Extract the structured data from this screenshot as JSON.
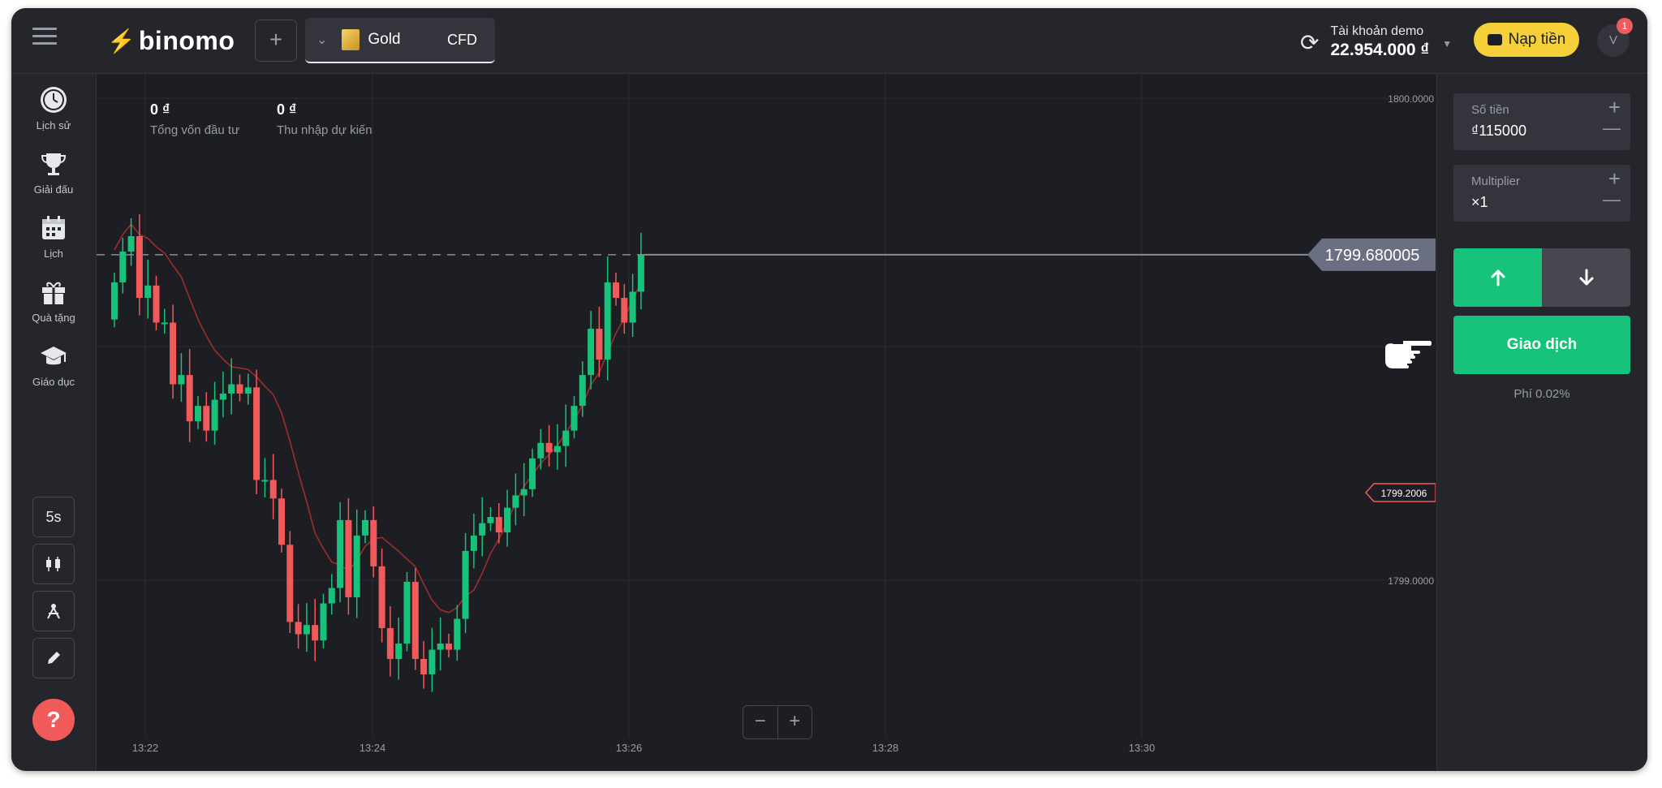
{
  "header": {
    "brand": "binomo",
    "asset": {
      "name": "Gold",
      "type": "CFD"
    },
    "account": {
      "label": "Tài khoản demo",
      "balance": "22.954.000 ₫"
    },
    "deposit_label": "Nạp tiền",
    "avatar_letter": "V",
    "notification_count": "1",
    "add_asset_label": "+"
  },
  "sidebar": {
    "items": [
      {
        "label": "Lịch sử",
        "icon": "clock-icon"
      },
      {
        "label": "Giải đấu",
        "icon": "trophy-icon"
      },
      {
        "label": "Lịch",
        "icon": "calendar-icon"
      },
      {
        "label": "Quà tặng",
        "icon": "gift-icon"
      },
      {
        "label": "Giáo dục",
        "icon": "graduation-cap-icon"
      }
    ],
    "tools": {
      "timeframe_label": "5s",
      "chart_type_icon": "candles-icon",
      "indicators_icon": "indicators-icon",
      "drawing_icon": "pencil-icon"
    },
    "help_label": "?"
  },
  "chart": {
    "stats": [
      {
        "value": "0 ₫",
        "label": "Tổng vốn đầu tư"
      },
      {
        "value": "0 ₫",
        "label": "Thu nhập dự kiến"
      }
    ],
    "current_price": "1799.680005",
    "marker_price": "1799.2006",
    "zoom_out_label": "−",
    "zoom_in_label": "+"
  },
  "chart_data": {
    "type": "candlestick",
    "y_ticks": [
      "1800.0000",
      "1799.0000"
    ],
    "x_ticks": [
      "13:22",
      "13:24",
      "13:26",
      "13:28",
      "13:30"
    ],
    "candle_values": [
      0.12,
      0.1,
      0.05,
      -0.2,
      0.04,
      -0.12,
      0.0,
      -0.2,
      0.03,
      -0.15,
      0.05,
      -0.08,
      0.1,
      0.02,
      0.03,
      -0.03,
      0.02,
      -0.3,
      0.0,
      -0.06,
      -0.15,
      -0.25,
      -0.04,
      0.03,
      -0.05,
      0.12,
      0.05,
      0.22,
      -0.25,
      0.2,
      0.05,
      -0.15,
      -0.2,
      -0.1,
      0.05,
      0.2,
      -0.25,
      -0.05,
      0.08,
      0.02,
      -0.02,
      0.1,
      0.22,
      0.05,
      0.04,
      0.02,
      -0.05,
      0.08,
      0.04,
      0.02,
      0.1,
      0.05,
      -0.03,
      0.02,
      0.05,
      0.08,
      0.1,
      0.15,
      -0.1,
      0.25,
      -0.05,
      -0.08,
      0.1,
      0.12
    ]
  },
  "trade_panel": {
    "amount": {
      "label": "Số tiền",
      "value": "₫115000"
    },
    "multiplier": {
      "label": "Multiplier",
      "value": "×1"
    },
    "trade_label": "Giao dịch",
    "fee": "Phí 0.02%",
    "up_icon": "arrow-up-icon",
    "down_icon": "arrow-down-icon"
  },
  "colors": {
    "up": "#17c27b",
    "down": "#f05a5a",
    "accent_yellow": "#f6d038",
    "background": "#1d1e23"
  }
}
